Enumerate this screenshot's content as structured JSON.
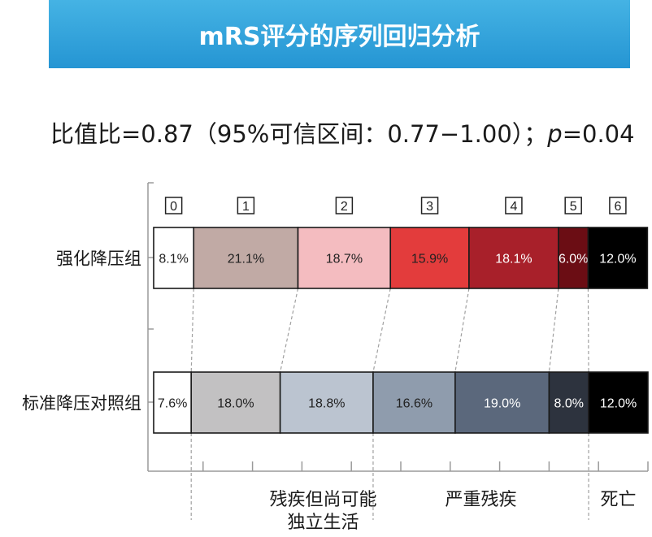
{
  "title": "mRS评分的序列回归分析",
  "stats": {
    "prefix": "比值比=0.87（95%可信区间：0.77−1.00）；",
    "p_label": "p",
    "p_value": "=0.04"
  },
  "chart_data": {
    "type": "bar",
    "orientation": "horizontal-stacked-100",
    "categories": [
      "0",
      "1",
      "2",
      "3",
      "4",
      "5",
      "6"
    ],
    "series": [
      {
        "name": "强化降压组",
        "values": [
          8.1,
          21.1,
          18.7,
          15.9,
          18.1,
          6.0,
          12.0
        ],
        "labels": [
          "8.1%",
          "21.1%",
          "18.7%",
          "15.9%",
          "18.1%",
          "6.0%",
          "12.0%"
        ],
        "colors": [
          "#ffffff",
          "#c1aaa5",
          "#f4bcc0",
          "#e33c3c",
          "#a8202a",
          "#6b0d14",
          "#000000"
        ],
        "text_colors": [
          "#222222",
          "#222222",
          "#222222",
          "#222222",
          "#ffffff",
          "#ffffff",
          "#ffffff"
        ]
      },
      {
        "name": "标准降压对照组",
        "values": [
          7.6,
          18.0,
          18.8,
          16.6,
          19.0,
          8.0,
          12.0
        ],
        "labels": [
          "7.6%",
          "18.0%",
          "18.8%",
          "16.6%",
          "19.0%",
          "8.0%",
          "12.0%"
        ],
        "colors": [
          "#ffffff",
          "#c2c1c2",
          "#bbc4d0",
          "#8f9cad",
          "#5b687c",
          "#2d333e",
          "#000000"
        ],
        "text_colors": [
          "#222222",
          "#222222",
          "#222222",
          "#222222",
          "#ffffff",
          "#ffffff",
          "#ffffff"
        ]
      }
    ],
    "groups": [
      {
        "lines": [
          "残疾但尚可能",
          "独立生活"
        ],
        "from": 1,
        "to": 3
      },
      {
        "lines": [
          "严重残疾"
        ],
        "from": 3,
        "to": 5
      },
      {
        "lines": [
          "死亡"
        ],
        "from": 6,
        "to": 6
      }
    ],
    "xlim": [
      0,
      100
    ]
  }
}
